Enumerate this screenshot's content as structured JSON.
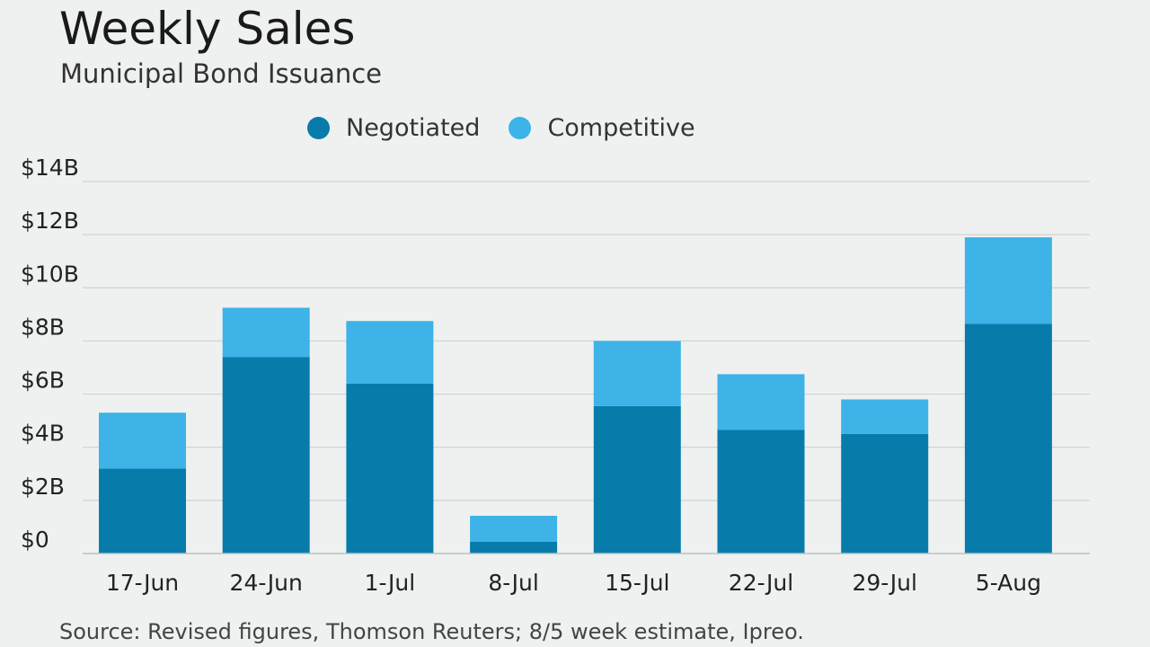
{
  "colors": {
    "negotiated": "#077cab",
    "competitive": "#3db3e7",
    "grid": "#cfd3d4",
    "background": "#eff1f1"
  },
  "source": "Source: Revised figures, Thomson Reuters; 8/5 week estimate, Ipreo.",
  "chart_data": {
    "type": "bar",
    "stacked": true,
    "title": "Weekly Sales",
    "subtitle": "Municipal Bond Issuance",
    "xlabel": "",
    "ylabel": "",
    "ylim": [
      0,
      14
    ],
    "yticks": [
      0,
      2,
      4,
      6,
      8,
      10,
      12,
      14
    ],
    "ytick_labels": [
      "$0",
      "$2B",
      "$4B",
      "$6B",
      "$8B",
      "$10B",
      "$12B",
      "$14B"
    ],
    "grid": true,
    "legend_position": "top-center",
    "categories": [
      "17-Jun",
      "24-Jun",
      "1-Jul",
      "8-Jul",
      "15-Jul",
      "22-Jul",
      "29-Jul",
      "5-Aug"
    ],
    "series": [
      {
        "name": "Negotiated",
        "values": [
          3.2,
          7.4,
          6.4,
          0.45,
          5.55,
          4.65,
          4.5,
          8.65
        ],
        "color": "#077cab"
      },
      {
        "name": "Competitive",
        "values": [
          2.1,
          1.85,
          2.35,
          0.97,
          2.45,
          2.1,
          1.3,
          3.25
        ],
        "color": "#3db3e7"
      }
    ]
  }
}
